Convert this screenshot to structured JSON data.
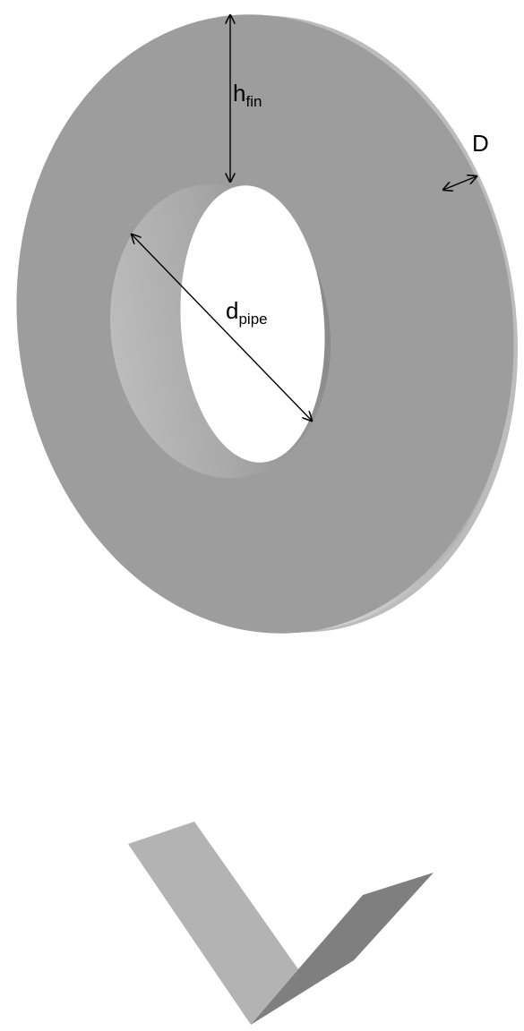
{
  "labels": {
    "h_fin": {
      "base": "h",
      "sub": "fin"
    },
    "d_pipe": {
      "base": "d",
      "sub": "pipe"
    },
    "D": "D"
  },
  "colors": {
    "fin_face": "#9e9e9e",
    "fin_back": "#c4c4c4",
    "bore_light": "#b4b4b4",
    "bore_dark": "#7a7a7a",
    "arrow": "#000000",
    "segment_light": "#b3b3b3",
    "segment_dark": "#7e7e7e"
  }
}
